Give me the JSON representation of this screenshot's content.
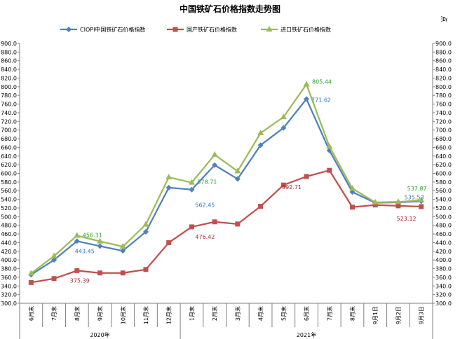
{
  "chart_data": {
    "type": "line",
    "title": "中国铁矿石价格指数走势图",
    "unit": "点",
    "ylim": [
      300,
      900
    ],
    "ytick_step": 20,
    "grid": false,
    "legend_position": "top",
    "categories": [
      "6月末",
      "7月末",
      "8月末",
      "9月末",
      "10月末",
      "11月末",
      "12月末",
      "1月末",
      "2月末",
      "3月末",
      "4月末",
      "5月末",
      "6月末",
      "7月末",
      "8月末",
      "9月1日",
      "9月2日",
      "9月3日"
    ],
    "year_groups": [
      {
        "label": "2020年",
        "start": 0,
        "end": 6
      },
      {
        "label": "2021年",
        "start": 7,
        "end": 17
      }
    ],
    "series": [
      {
        "name": "CIOPI中国铁矿石价格指数",
        "color": "#4f81bd",
        "label_color": "#2e75b6",
        "marker": "diamond",
        "values": [
          366,
          400,
          443.45,
          432,
          421,
          465,
          567,
          562.45,
          619,
          587,
          665,
          705,
          771.62,
          653,
          557,
          532,
          533,
          535.53
        ]
      },
      {
        "name": "国产铁矿石价格指数",
        "color": "#c0504d",
        "label_color": "#a52a2a",
        "marker": "square",
        "values": [
          348,
          357,
          375.39,
          370,
          370,
          378,
          440,
          476.42,
          488,
          483,
          524,
          573,
          592.71,
          607,
          522,
          527,
          525,
          523.12
        ]
      },
      {
        "name": "进口铁矿石价格指数",
        "color": "#9bbb59",
        "label_color": "#2ca02c",
        "marker": "triangle",
        "values": [
          369,
          409,
          456.31,
          443,
          431,
          482,
          591,
          578.71,
          643,
          605,
          693,
          730,
          805.44,
          662,
          565,
          533,
          534,
          537.87
        ]
      }
    ],
    "data_labels": [
      {
        "series": 0,
        "index": 2,
        "text": "443.45",
        "dx": -3,
        "dy": 17
      },
      {
        "series": 0,
        "index": 7,
        "text": "562.45",
        "dx": 5,
        "dy": 25
      },
      {
        "series": 0,
        "index": 12,
        "text": "771.62",
        "dx": 7,
        "dy": 4
      },
      {
        "series": 0,
        "index": 17,
        "text": "535.53",
        "dx": -24,
        "dy": -3
      },
      {
        "series": 1,
        "index": 2,
        "text": "375.39",
        "dx": -10,
        "dy": 17
      },
      {
        "series": 1,
        "index": 7,
        "text": "476.42",
        "dx": 5,
        "dy": 17
      },
      {
        "series": 1,
        "index": 12,
        "text": "592.71",
        "dx": -35,
        "dy": 18
      },
      {
        "series": 1,
        "index": 17,
        "text": "523.12",
        "dx": -35,
        "dy": 20
      },
      {
        "series": 2,
        "index": 2,
        "text": "456.31",
        "dx": 8,
        "dy": 2
      },
      {
        "series": 2,
        "index": 7,
        "text": "578.71",
        "dx": 8,
        "dy": 2
      },
      {
        "series": 2,
        "index": 12,
        "text": "805.44",
        "dx": 8,
        "dy": -1
      },
      {
        "series": 2,
        "index": 17,
        "text": "537.87",
        "dx": -20,
        "dy": -14
      }
    ]
  }
}
